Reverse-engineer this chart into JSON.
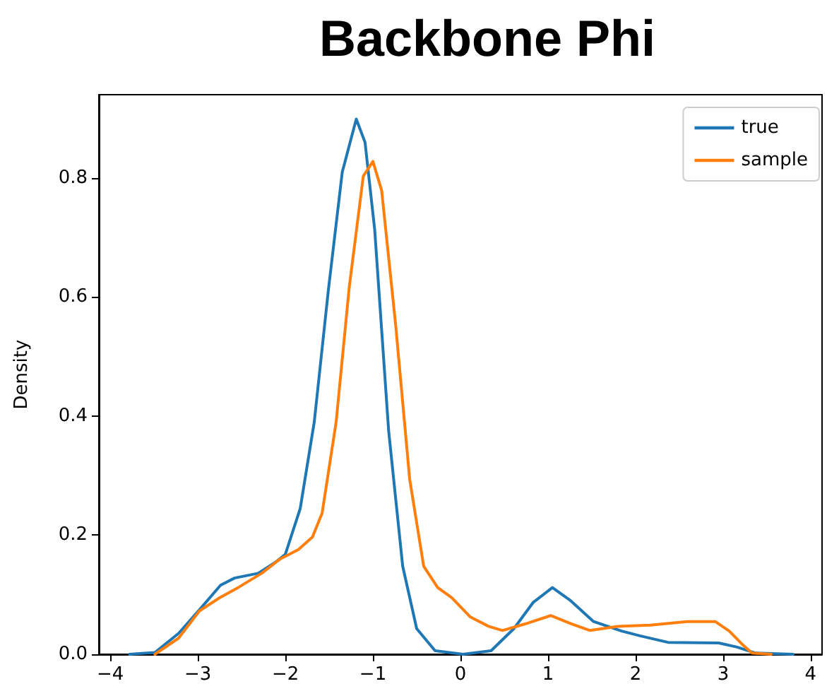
{
  "chart_data": {
    "type": "line",
    "title": "Backbone Phi",
    "ylabel": "Density",
    "xlim": [
      -4.13,
      4.13
    ],
    "ylim": [
      0,
      0.94
    ],
    "xticks": [
      {
        "value": -4,
        "label": "−4"
      },
      {
        "value": -3,
        "label": "−3"
      },
      {
        "value": -2,
        "label": "−2"
      },
      {
        "value": -1,
        "label": "−1"
      },
      0,
      1,
      2,
      3,
      4
    ],
    "yticks": [
      {
        "value": 0,
        "label": "0.0"
      },
      0.2,
      0.4,
      0.6,
      0.8
    ],
    "grid": false,
    "legend": "top right",
    "marker": "none",
    "line_style": "solid",
    "series": [
      {
        "name": "true",
        "color": "#1f77b4",
        "x": [
          -3.78,
          -3.49,
          -3.22,
          -2.98,
          -2.74,
          -2.58,
          -2.31,
          -2.1,
          -2.0,
          -1.83,
          -1.67,
          -1.51,
          -1.35,
          -1.19,
          -1.09,
          -0.98,
          -0.82,
          -0.66,
          -0.5,
          -0.29,
          0.03,
          0.35,
          0.61,
          0.83,
          1.05,
          1.25,
          1.52,
          1.84,
          2.05,
          2.37,
          2.95,
          3.16,
          3.37,
          3.8
        ],
        "values": [
          0,
          0.003,
          0.035,
          0.075,
          0.116,
          0.128,
          0.136,
          0.156,
          0.168,
          0.245,
          0.39,
          0.61,
          0.81,
          0.899,
          0.86,
          0.714,
          0.375,
          0.148,
          0.043,
          0.006,
          0,
          0.006,
          0.043,
          0.087,
          0.112,
          0.091,
          0.055,
          0.039,
          0.031,
          0.02,
          0.019,
          0.012,
          0.002,
          0
        ]
      },
      {
        "name": "sample",
        "color": "#ff7f0e",
        "x": [
          -3.49,
          -3.22,
          -2.98,
          -2.75,
          -2.54,
          -2.27,
          -2.06,
          -1.85,
          -1.69,
          -1.58,
          -1.42,
          -1.27,
          -1.11,
          -1.0,
          -0.9,
          -0.74,
          -0.58,
          -0.42,
          -0.26,
          -0.1,
          0.11,
          0.32,
          0.48,
          0.74,
          1.03,
          1.27,
          1.48,
          1.8,
          2.17,
          2.59,
          2.91,
          3.07,
          3.23,
          3.33,
          3.55
        ],
        "values": [
          0,
          0.027,
          0.073,
          0.095,
          0.112,
          0.136,
          0.16,
          0.176,
          0.197,
          0.237,
          0.39,
          0.617,
          0.803,
          0.828,
          0.779,
          0.553,
          0.294,
          0.148,
          0.112,
          0.095,
          0.063,
          0.047,
          0.04,
          0.051,
          0.065,
          0.051,
          0.04,
          0.047,
          0.049,
          0.055,
          0.055,
          0.039,
          0.015,
          0.002,
          0
        ]
      }
    ]
  }
}
